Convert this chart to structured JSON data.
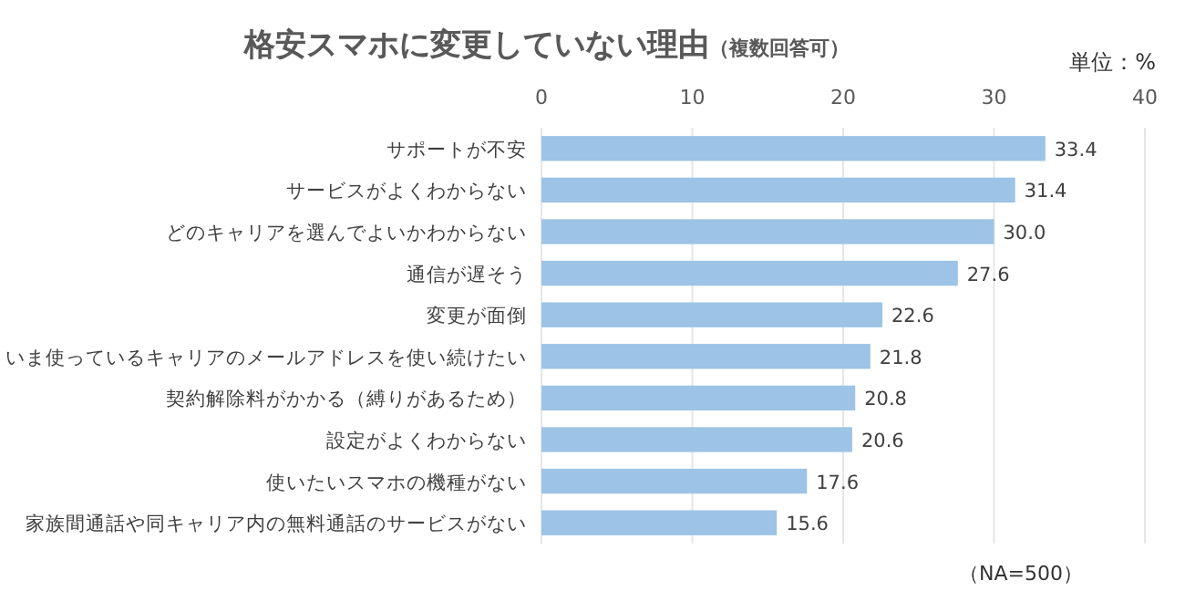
{
  "chart_data": {
    "type": "bar",
    "orientation": "horizontal",
    "title": "格安スマホに変更していない理由",
    "subtitle": "（複数回答可）",
    "categories": [
      "サポートが不安",
      "サービスがよくわからない",
      "どのキャリアを選んでよいかわからない",
      "通信が遅そう",
      "変更が面倒",
      "いま使っているキャリアのメールアドレスを使い続けたい",
      "契約解除料がかかる（縛りがあるため）",
      "設定がよくわからない",
      "使いたいスマホの機種がない",
      "家族間通話や同キャリア内の無料通話のサービスがない"
    ],
    "values": [
      33.4,
      31.4,
      30.0,
      27.6,
      22.6,
      21.8,
      20.8,
      20.6,
      17.6,
      15.6
    ],
    "value_labels": [
      "33.4",
      "31.4",
      "30.0",
      "27.6",
      "22.6",
      "21.8",
      "20.8",
      "20.6",
      "17.6",
      "15.6"
    ],
    "color": "#9dc3e6",
    "xlim": [
      0,
      40
    ],
    "xticks": [
      0,
      10,
      20,
      30,
      40
    ],
    "grid": "x",
    "annotations": [
      "単位：%",
      "（NA=500）"
    ]
  }
}
